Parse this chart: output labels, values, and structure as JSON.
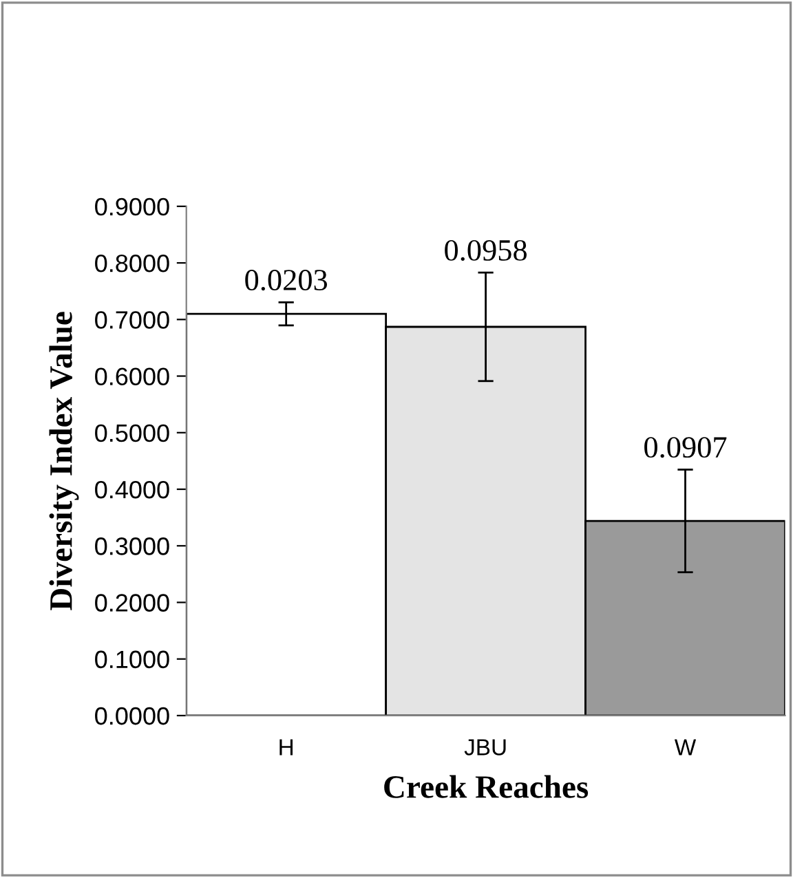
{
  "chart_data": {
    "type": "bar",
    "xlabel": "Creek Reaches",
    "ylabel": "Diversity Index Value",
    "categories": [
      "H",
      "JBU",
      "W"
    ],
    "values": [
      0.71,
      0.687,
      0.344
    ],
    "colors": [
      "#ffffff",
      "#e4e4e4",
      "#9a9a9a"
    ],
    "errors": [
      0.0203,
      0.0958,
      0.0907
    ],
    "annotations": [
      {
        "text": "0.0203",
        "x": "H",
        "y": 0.7303
      },
      {
        "text": "0.0958",
        "x": "JBU",
        "y": 0.7828
      },
      {
        "text": "0.0907",
        "x": "W",
        "y": 0.4347
      }
    ],
    "ylim": [
      0,
      0.9
    ],
    "yticks": [
      {
        "value": 0,
        "label": "0.0000"
      },
      {
        "value": 0.1,
        "label": "0.1000"
      },
      {
        "value": 0.2,
        "label": "0.2000"
      },
      {
        "value": 0.3,
        "label": "0.3000"
      },
      {
        "value": 0.4,
        "label": "0.4000"
      },
      {
        "value": 0.5,
        "label": "0.5000"
      },
      {
        "value": 0.6,
        "label": "0.6000"
      },
      {
        "value": 0.7,
        "label": "0.7000"
      },
      {
        "value": 0.8,
        "label": "0.8000"
      },
      {
        "value": 0.9,
        "label": "0.9000"
      }
    ],
    "grid": false,
    "legend": false
  }
}
